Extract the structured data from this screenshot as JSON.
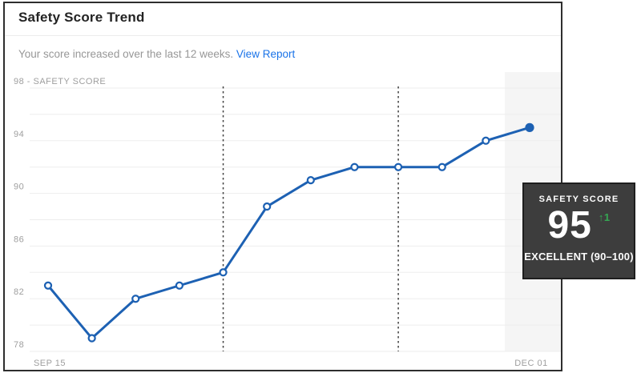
{
  "card": {
    "title": "Safety Score Trend",
    "subtitle_text": "Your score increased over the last 12 weeks.",
    "subtitle_link": "View Report"
  },
  "chart_data": {
    "type": "line",
    "title": "Safety Score Trend",
    "series": [
      {
        "name": "SAFETY SCORE",
        "values": [
          83,
          79,
          82,
          83,
          84,
          89,
          91,
          92,
          92,
          92,
          94,
          95
        ]
      }
    ],
    "ylim": [
      78,
      98
    ],
    "grid_step": 2,
    "y_ticks": [
      {
        "value": 98,
        "label": "98 - SAFETY SCORE"
      },
      {
        "value": 94,
        "label": "94"
      },
      {
        "value": 90,
        "label": "90"
      },
      {
        "value": 86,
        "label": "86"
      },
      {
        "value": 82,
        "label": "82"
      },
      {
        "value": 78,
        "label": "78"
      }
    ],
    "x_tick_labels": [
      {
        "index": 0,
        "label": "SEP 15"
      },
      {
        "index": 11,
        "label": "DEC 01"
      }
    ],
    "dashed_line_indexes": [
      4,
      8
    ],
    "highlight_band_on_last_point": true,
    "legend": "none",
    "colors": {
      "line": "#1d61b3",
      "marker_fill": "#ffffff",
      "grid": "#ededed",
      "dashed": "#3f3f3f",
      "band": "#f5f5f5",
      "axis_label": "#9e9e9e"
    }
  },
  "badge": {
    "label": "SAFETY SCORE",
    "score": "95",
    "delta": "↑1",
    "rating": "EXCELLENT (90–100)",
    "bg_color": "#3d3d3d",
    "delta_color": "#35a853"
  }
}
